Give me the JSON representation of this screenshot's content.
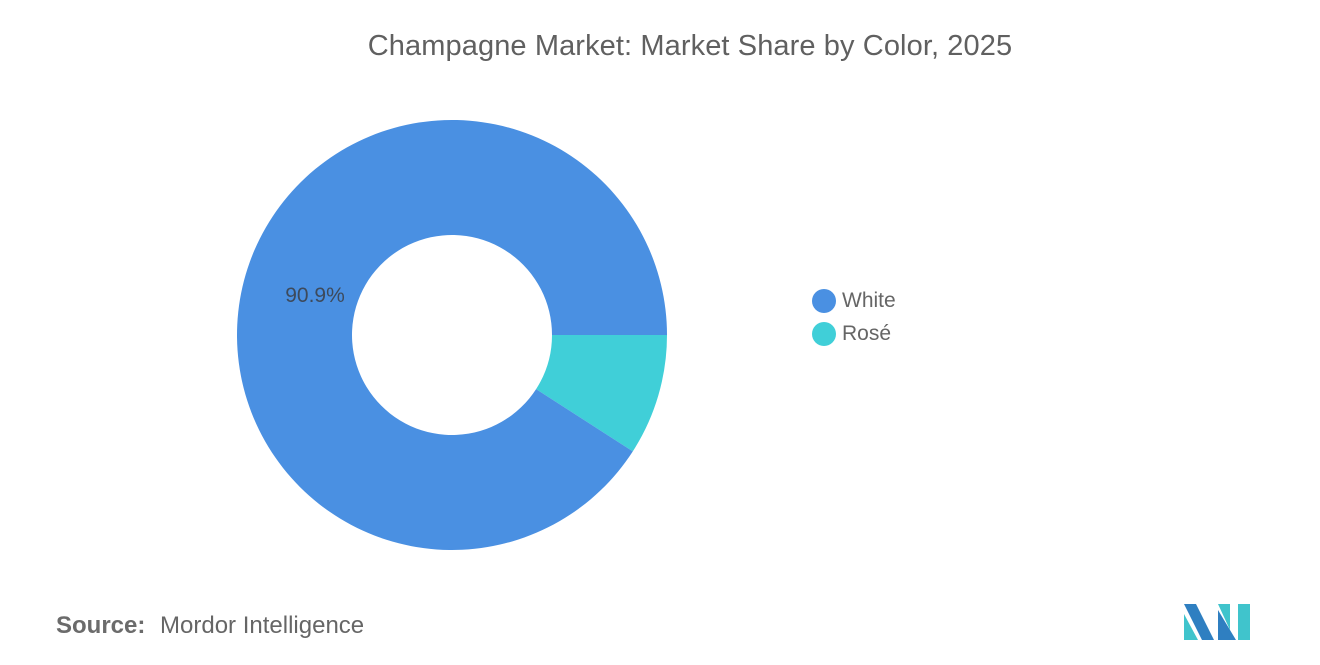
{
  "chart_data": {
    "type": "pie",
    "subtype": "donut",
    "title": "Champagne Market: Market Share by Color, 2025",
    "categories": [
      "White",
      "Rosé"
    ],
    "values": [
      90.9,
      9.1
    ],
    "unit": "%",
    "colors": [
      "#4a90e2",
      "#40cfd8"
    ],
    "data_labels": [
      {
        "category": "White",
        "text": "90.9%"
      }
    ],
    "legend": {
      "position": "right",
      "entries": [
        "White",
        "Rosé"
      ]
    }
  },
  "header": {
    "title": "Champagne Market: Market Share by Color, 2025"
  },
  "legend": {
    "items": [
      {
        "label": "White",
        "color": "#4a90e2"
      },
      {
        "label": "Rosé",
        "color": "#40cfd8"
      }
    ]
  },
  "labels": {
    "white_pct": "90.9%"
  },
  "footer": {
    "source_label": "Source:",
    "source_value": "Mordor Intelligence",
    "logo_icon": "mordor-intelligence-logo-icon"
  }
}
